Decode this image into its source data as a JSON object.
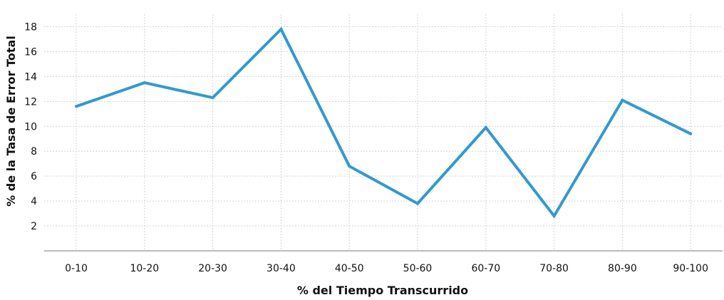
{
  "chart_data": {
    "type": "line",
    "title": "",
    "xlabel": "% del Tiempo Transcurrido",
    "ylabel": "% de la Tasa de Error Total",
    "categories": [
      "0-10",
      "10-20",
      "20-30",
      "30-40",
      "40-50",
      "50-60",
      "60-70",
      "70-80",
      "80-90",
      "90-100"
    ],
    "series": [
      {
        "values": [
          11.6,
          13.5,
          12.3,
          17.8,
          6.8,
          3.8,
          9.9,
          2.8,
          12.1,
          9.4
        ],
        "color": "#3399cc"
      }
    ],
    "yticks": [
      2,
      4,
      6,
      8,
      10,
      12,
      14,
      16,
      18
    ],
    "ylim": [
      0,
      19
    ],
    "grid": true
  }
}
